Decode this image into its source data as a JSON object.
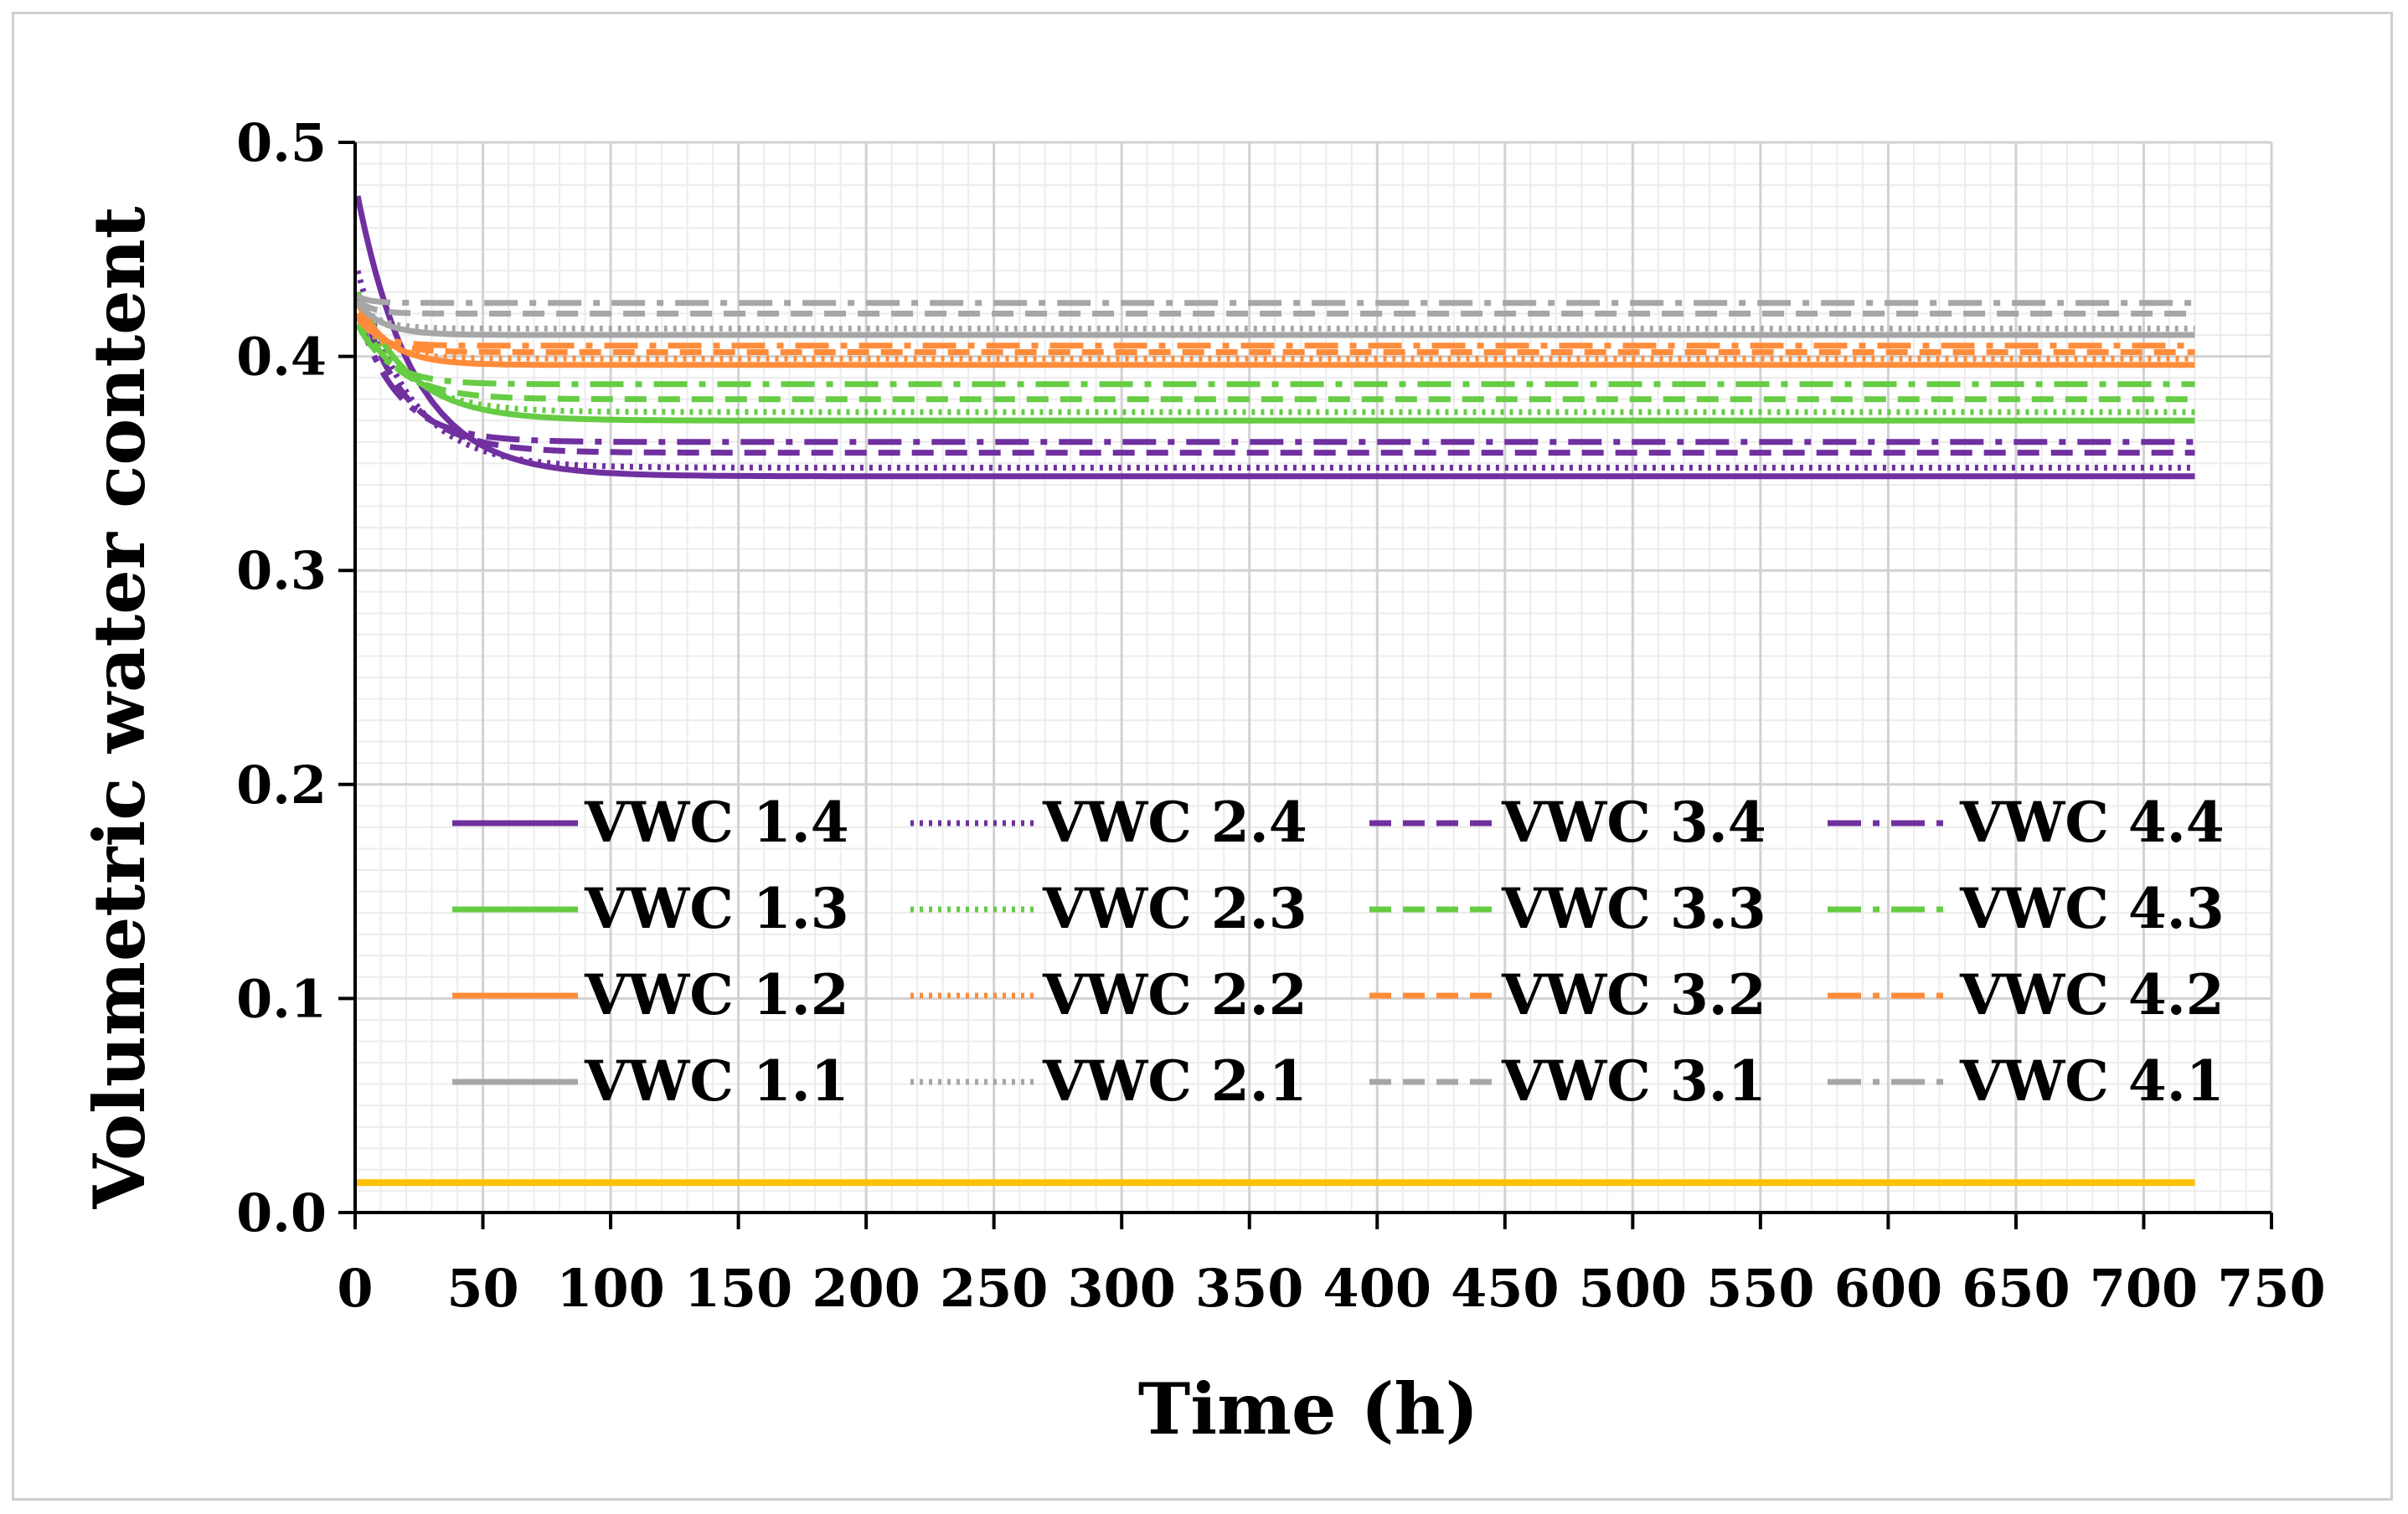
{
  "chart_data": {
    "type": "line",
    "title": "",
    "xlabel": "Time (h)",
    "ylabel": "Volumetric water content",
    "xlim": [
      0,
      750
    ],
    "ylim": [
      0,
      0.5
    ],
    "x_ticks": [
      0,
      50,
      100,
      150,
      200,
      250,
      300,
      350,
      400,
      450,
      500,
      550,
      600,
      650,
      700,
      750
    ],
    "y_ticks": [
      0.0,
      0.1,
      0.2,
      0.3,
      0.4,
      0.5
    ],
    "y_tick_labels": [
      "0.0",
      "0.1",
      "0.2",
      "0.3",
      "0.4",
      "0.5"
    ],
    "x_max_data": 720,
    "grid": true,
    "legend_position": "center, lower half inside plot, 4 columns",
    "series": [
      {
        "name": "VWC 1.4",
        "color": "#7030A0",
        "style": "solid",
        "start": 0.475,
        "end": 0.344,
        "tau": 22
      },
      {
        "name": "VWC 2.4",
        "color": "#7030A0",
        "style": "dotted",
        "start": 0.44,
        "end": 0.348,
        "tau": 20
      },
      {
        "name": "VWC 3.4",
        "color": "#7030A0",
        "style": "dashed",
        "start": 0.43,
        "end": 0.355,
        "tau": 18
      },
      {
        "name": "VWC 4.4",
        "color": "#7030A0",
        "style": "dashdot",
        "start": 0.42,
        "end": 0.36,
        "tau": 16
      },
      {
        "name": "VWC 1.3",
        "color": "#66CC44",
        "style": "solid",
        "start": 0.43,
        "end": 0.37,
        "tau": 20
      },
      {
        "name": "VWC 2.3",
        "color": "#66CC44",
        "style": "dotted",
        "start": 0.425,
        "end": 0.374,
        "tau": 18
      },
      {
        "name": "VWC 3.3",
        "color": "#66CC44",
        "style": "dashed",
        "start": 0.42,
        "end": 0.38,
        "tau": 15
      },
      {
        "name": "VWC 4.3",
        "color": "#66CC44",
        "style": "dashdot",
        "start": 0.415,
        "end": 0.387,
        "tau": 12
      },
      {
        "name": "VWC 1.2",
        "color": "#FF8C3A",
        "style": "solid",
        "start": 0.425,
        "end": 0.396,
        "tau": 12
      },
      {
        "name": "VWC 2.2",
        "color": "#FF8C3A",
        "style": "dotted",
        "start": 0.42,
        "end": 0.399,
        "tau": 10
      },
      {
        "name": "VWC 3.2",
        "color": "#FF8C3A",
        "style": "dashed",
        "start": 0.42,
        "end": 0.402,
        "tau": 9
      },
      {
        "name": "VWC 4.2",
        "color": "#FF8C3A",
        "style": "dashdot",
        "start": 0.418,
        "end": 0.405,
        "tau": 8
      },
      {
        "name": "VWC 1.1",
        "color": "#A6A6A6",
        "style": "solid",
        "start": 0.425,
        "end": 0.41,
        "tau": 10
      },
      {
        "name": "VWC 2.1",
        "color": "#A6A6A6",
        "style": "dotted",
        "start": 0.425,
        "end": 0.413,
        "tau": 8
      },
      {
        "name": "VWC 3.1",
        "color": "#A6A6A6",
        "style": "dashed",
        "start": 0.426,
        "end": 0.42,
        "tau": 6
      },
      {
        "name": "VWC 4.1",
        "color": "#A6A6A6",
        "style": "dashdot",
        "start": 0.428,
        "end": 0.425,
        "tau": 5
      }
    ],
    "baseline": {
      "color": "#FFC000",
      "y": 0.014,
      "x_end": 720
    }
  }
}
